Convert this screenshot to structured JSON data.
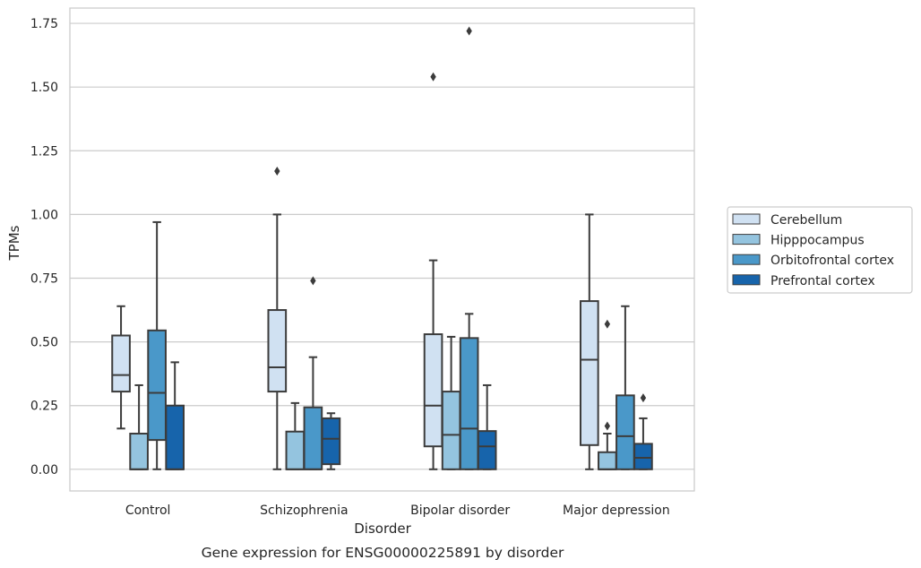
{
  "caption": "Gene expression for ENSG00000225891 by disorder",
  "chart_data": {
    "type": "box",
    "xlabel": "Disorder",
    "ylabel": "TPMs",
    "ylim": [
      -0.085,
      1.81
    ],
    "yticks": [
      0.0,
      0.25,
      0.5,
      0.75,
      1.0,
      1.25,
      1.5,
      1.75
    ],
    "ytick_labels": [
      "0.00",
      "0.25",
      "0.50",
      "0.75",
      "1.00",
      "1.25",
      "1.50",
      "1.75"
    ],
    "grid": "horizontal",
    "legend_position": "right",
    "categories": [
      "Control",
      "Schizophrenia",
      "Bipolar disorder",
      "Major depression"
    ],
    "series": [
      {
        "name": "Cerebellum",
        "color": "#d0e1f2",
        "boxes": [
          {
            "whislo": 0.16,
            "q1": 0.305,
            "med": 0.37,
            "q3": 0.525,
            "whishi": 0.64,
            "fliers": []
          },
          {
            "whislo": 0.0,
            "q1": 0.305,
            "med": 0.4,
            "q3": 0.625,
            "whishi": 1.0,
            "fliers": [
              1.17
            ]
          },
          {
            "whislo": 0.0,
            "q1": 0.09,
            "med": 0.25,
            "q3": 0.53,
            "whishi": 0.82,
            "fliers": [
              1.54
            ]
          },
          {
            "whislo": 0.0,
            "q1": 0.095,
            "med": 0.43,
            "q3": 0.66,
            "whishi": 1.0,
            "fliers": []
          }
        ]
      },
      {
        "name": "Hipppocampus",
        "color": "#94c4df",
        "boxes": [
          {
            "whislo": 0.0,
            "q1": 0.0,
            "med": 0.0,
            "q3": 0.14,
            "whishi": 0.33,
            "fliers": []
          },
          {
            "whislo": 0.0,
            "q1": 0.0,
            "med": 0.0,
            "q3": 0.148,
            "whishi": 0.26,
            "fliers": []
          },
          {
            "whislo": 0.0,
            "q1": 0.0,
            "med": 0.135,
            "q3": 0.305,
            "whishi": 0.52,
            "fliers": []
          },
          {
            "whislo": 0.0,
            "q1": 0.0,
            "med": 0.0,
            "q3": 0.067,
            "whishi": 0.14,
            "fliers": [
              0.17,
              0.57
            ]
          }
        ]
      },
      {
        "name": "Orbitofrontal cortex",
        "color": "#4a98c9",
        "boxes": [
          {
            "whislo": 0.0,
            "q1": 0.115,
            "med": 0.3,
            "q3": 0.545,
            "whishi": 0.97,
            "fliers": []
          },
          {
            "whislo": 0.0,
            "q1": 0.0,
            "med": 0.0,
            "q3": 0.243,
            "whishi": 0.44,
            "fliers": [
              0.74
            ]
          },
          {
            "whislo": 0.0,
            "q1": 0.0,
            "med": 0.16,
            "q3": 0.515,
            "whishi": 0.61,
            "fliers": [
              1.72
            ]
          },
          {
            "whislo": 0.0,
            "q1": 0.0,
            "med": 0.13,
            "q3": 0.29,
            "whishi": 0.64,
            "fliers": []
          }
        ]
      },
      {
        "name": "Prefrontal cortex",
        "color": "#1764ab",
        "boxes": [
          {
            "whislo": 0.0,
            "q1": 0.0,
            "med": 0.0,
            "q3": 0.25,
            "whishi": 0.42,
            "fliers": []
          },
          {
            "whislo": 0.0,
            "q1": 0.02,
            "med": 0.12,
            "q3": 0.2,
            "whishi": 0.22,
            "fliers": []
          },
          {
            "whislo": 0.0,
            "q1": 0.0,
            "med": 0.09,
            "q3": 0.15,
            "whishi": 0.33,
            "fliers": []
          },
          {
            "whislo": 0.0,
            "q1": 0.0,
            "med": 0.045,
            "q3": 0.1,
            "whishi": 0.2,
            "fliers": [
              0.28
            ]
          }
        ]
      }
    ]
  }
}
